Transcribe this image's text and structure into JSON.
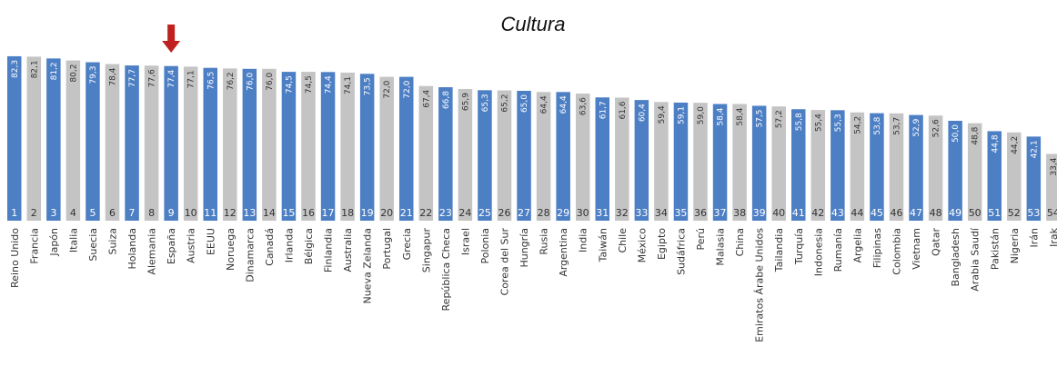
{
  "chart_data": {
    "type": "bar",
    "title": "Cultura",
    "categories": [
      "Reino Unido",
      "Francia",
      "Japón",
      "Italia",
      "Suecia",
      "Suiza",
      "Holanda",
      "Alemania",
      "España",
      "Austria",
      "EEUU",
      "Noruega",
      "Dinamarca",
      "Canadá",
      "Irlanda",
      "Bélgica",
      "Finlandia",
      "Australia",
      "Nueva Zelanda",
      "Portugal",
      "Grecia",
      "Singapur",
      "República Checa",
      "Israel",
      "Polonia",
      "Corea del Sur",
      "Hungría",
      "Rusia",
      "Argentina",
      "India",
      "Taiwán",
      "Chile",
      "México",
      "Egipto",
      "Sudáfrica",
      "Perú",
      "Malasia",
      "China",
      "Emiratos Árabe Unidos",
      "Tailandia",
      "Turquía",
      "Indonesia",
      "Rumanía",
      "Argelia",
      "Filipinas",
      "Colombia",
      "Vietnam",
      "Qatar",
      "Bangladesh",
      "Arabia Saudí",
      "Pakistán",
      "Nigeria",
      "Irán",
      "Irak"
    ],
    "values": [
      "82,3",
      "82,1",
      "81,2",
      "80,2",
      "79,3",
      "78,4",
      "77,7",
      "77,6",
      "77,4",
      "77,1",
      "76,5",
      "76,2",
      "76,0",
      "76,0",
      "74,5",
      "74,5",
      "74,4",
      "74,1",
      "73,5",
      "72,0",
      "72,0",
      "67,4",
      "66,8",
      "65,9",
      "65,3",
      "65,2",
      "65,0",
      "64,4",
      "64,4",
      "63,6",
      "61,7",
      "61,6",
      "60,4",
      "59,4",
      "59,1",
      "59,0",
      "58,4",
      "58,4",
      "57,5",
      "57,2",
      "55,8",
      "55,4",
      "55,3",
      "54,2",
      "53,8",
      "53,7",
      "52,9",
      "52,6",
      "50,0",
      "48,8",
      "44,8",
      "44,2",
      "42,1",
      "33,4"
    ],
    "ranks": [
      "1",
      "2",
      "3",
      "4",
      "5",
      "6",
      "7",
      "8",
      "9",
      "10",
      "11",
      "12",
      "13",
      "14",
      "15",
      "16",
      "17",
      "18",
      "19",
      "20",
      "21",
      "22",
      "23",
      "24",
      "25",
      "26",
      "27",
      "28",
      "29",
      "30",
      "31",
      "32",
      "33",
      "34",
      "35",
      "36",
      "37",
      "38",
      "39",
      "40",
      "41",
      "42",
      "43",
      "44",
      "45",
      "46",
      "47",
      "48",
      "49",
      "50",
      "51",
      "52",
      "53",
      "54"
    ],
    "bar_colors": [
      "blue",
      "gray",
      "blue",
      "gray",
      "blue",
      "gray",
      "blue",
      "gray",
      "blue",
      "gray",
      "blue",
      "gray",
      "blue",
      "gray",
      "blue",
      "gray",
      "blue",
      "gray",
      "blue",
      "gray",
      "blue",
      "gray",
      "blue",
      "gray",
      "blue",
      "gray",
      "blue",
      "gray",
      "blue",
      "gray",
      "blue",
      "gray",
      "blue",
      "gray",
      "blue",
      "gray",
      "blue",
      "gray",
      "blue",
      "gray",
      "blue",
      "gray",
      "blue",
      "gray",
      "blue",
      "gray",
      "blue",
      "gray",
      "blue",
      "gray",
      "blue",
      "gray",
      "blue",
      "gray"
    ],
    "palette": {
      "blue": "#4d7fc5",
      "gray": "#c4c4c4",
      "arrow": "#c0211f"
    },
    "highlight_category": "España",
    "xlabel": "",
    "ylabel": "",
    "grid": false,
    "legend": "none"
  }
}
